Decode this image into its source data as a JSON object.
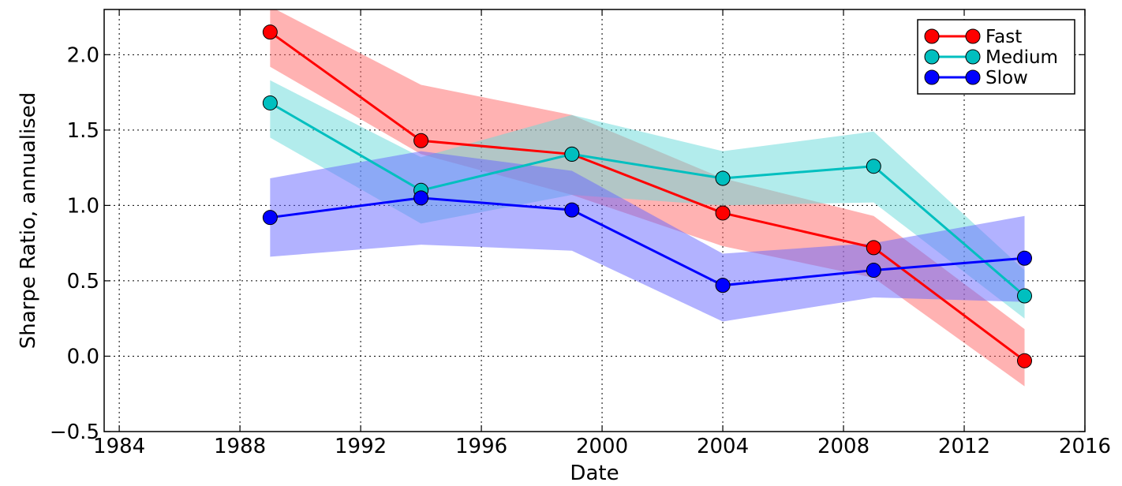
{
  "chart_data": {
    "type": "line",
    "title": "",
    "xlabel": "Date",
    "ylabel": "Sharpe Ratio, annualised",
    "xlim": [
      1983.5,
      2016.0
    ],
    "ylim": [
      -0.5,
      2.3
    ],
    "xticks": [
      1984,
      1988,
      1992,
      1996,
      2000,
      2004,
      2008,
      2012,
      2016
    ],
    "yticks": [
      -0.5,
      0.0,
      0.5,
      1.0,
      1.5,
      2.0
    ],
    "xtick_labels": [
      "1984",
      "1988",
      "1992",
      "1996",
      "2000",
      "2004",
      "2008",
      "2012",
      "2016"
    ],
    "ytick_labels": [
      "−0.5",
      "0.0",
      "0.5",
      "1.0",
      "1.5",
      "2.0"
    ],
    "grid": true,
    "legend_position": "top-right",
    "x": [
      1989,
      1994,
      1999,
      2004,
      2009,
      2014
    ],
    "series": [
      {
        "name": "Fast",
        "color": "#ff0000",
        "band_color": "#ff6666",
        "values": [
          2.15,
          1.43,
          1.34,
          0.95,
          0.72,
          -0.03
        ],
        "lower": [
          1.92,
          1.34,
          1.07,
          0.73,
          0.52,
          -0.2
        ],
        "upper": [
          2.32,
          1.8,
          1.6,
          1.18,
          0.93,
          0.18
        ]
      },
      {
        "name": "Medium",
        "color": "#00bfbf",
        "band_color": "#66d9d9",
        "values": [
          1.68,
          1.1,
          1.34,
          1.18,
          1.26,
          0.4
        ],
        "lower": [
          1.45,
          0.88,
          1.07,
          1.0,
          1.02,
          0.25
        ],
        "upper": [
          1.83,
          1.32,
          1.6,
          1.36,
          1.49,
          0.57
        ]
      },
      {
        "name": "Slow",
        "color": "#0000ff",
        "band_color": "#6666ff",
        "values": [
          0.92,
          1.05,
          0.97,
          0.47,
          0.57,
          0.65
        ],
        "lower": [
          0.66,
          0.74,
          0.7,
          0.23,
          0.39,
          0.36
        ],
        "upper": [
          1.18,
          1.36,
          1.23,
          0.68,
          0.75,
          0.93
        ]
      }
    ]
  }
}
